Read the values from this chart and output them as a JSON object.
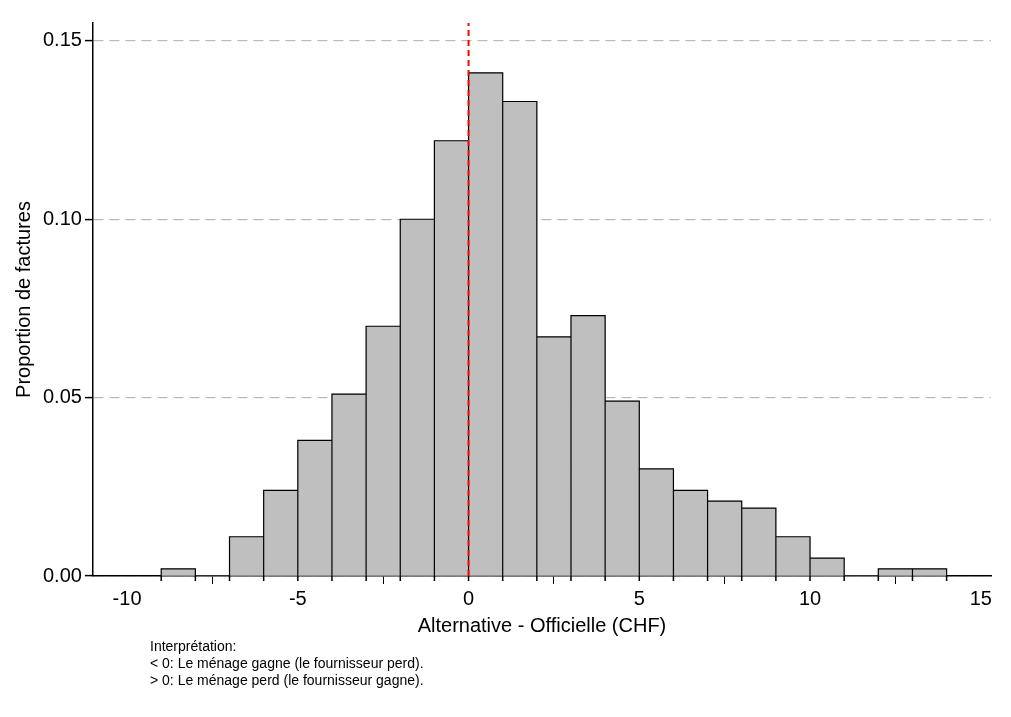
{
  "chart_data": {
    "type": "histogram",
    "xlabel": "Alternative - Officielle (CHF)",
    "ylabel": "Proportion de factures",
    "bins": [
      -9,
      -8,
      -7,
      -6,
      -5,
      -4,
      -3,
      -2,
      -1,
      0,
      1,
      2,
      3,
      4,
      5,
      6,
      7,
      8,
      9,
      10,
      11,
      12,
      13,
      14
    ],
    "values": [
      0.002,
      0,
      0.011,
      0.024,
      0.038,
      0.051,
      0.07,
      0.1,
      0.122,
      0.141,
      0.133,
      0.067,
      0.073,
      0.049,
      0.03,
      0.024,
      0.021,
      0.019,
      0.011,
      0.005,
      0,
      0.002,
      0.002
    ],
    "color": "#bfbfbf",
    "xlim": [
      -11,
      15.3
    ],
    "xticks": [
      -10,
      -5,
      0,
      5,
      10,
      15
    ],
    "ylim": [
      0,
      0.155
    ],
    "yticks": [
      {
        "value": 0,
        "label": "0.00"
      },
      {
        "value": 0.05,
        "label": "0.05"
      },
      {
        "value": 0.1,
        "label": "0.10"
      },
      {
        "value": 0.15,
        "label": "0.15"
      }
    ],
    "grid": "y",
    "ref_lines": [
      {
        "axis": "x",
        "value": 0,
        "color": "#ff0000",
        "line_style": "dashed"
      }
    ],
    "annotations": [
      "Interprétation:",
      "< 0: Le ménage gagne (le fournisseur perd).",
      "> 0: Le ménage perd (le fournisseur gagne)."
    ]
  }
}
